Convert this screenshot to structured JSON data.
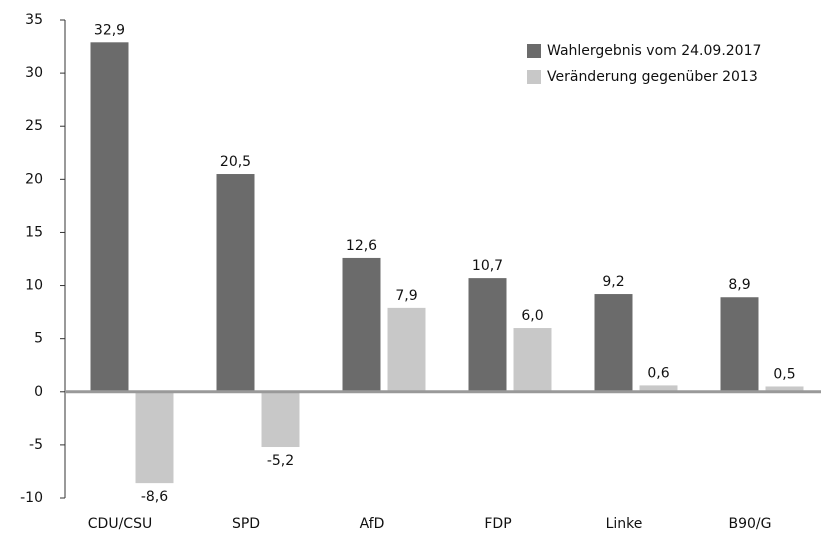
{
  "chart_data": {
    "type": "bar",
    "categories": [
      "CDU/CSU",
      "SPD",
      "AfD",
      "FDP",
      "Linke",
      "B90/G"
    ],
    "series": [
      {
        "name": "Wahlergebnis vom 24.09.2017",
        "color": "#6b6b6b",
        "values": [
          32.9,
          20.5,
          12.6,
          10.7,
          9.2,
          8.9
        ],
        "value_labels": [
          "32,9",
          "20,5",
          "12,6",
          "10,7",
          "9,2",
          "8,9"
        ]
      },
      {
        "name": "Veränderung gegenüber 2013",
        "color": "#c8c8c8",
        "values": [
          -8.6,
          -5.2,
          7.9,
          6.0,
          0.6,
          0.5
        ],
        "value_labels": [
          "-8,6",
          "-5,2",
          "7,9",
          "6,0",
          "0,6",
          "0,5"
        ]
      }
    ],
    "ylim": [
      -10,
      35
    ],
    "yticks": [
      -10,
      -5,
      0,
      5,
      10,
      15,
      20,
      25,
      30,
      35
    ],
    "grid": false,
    "legend": "top-right"
  }
}
